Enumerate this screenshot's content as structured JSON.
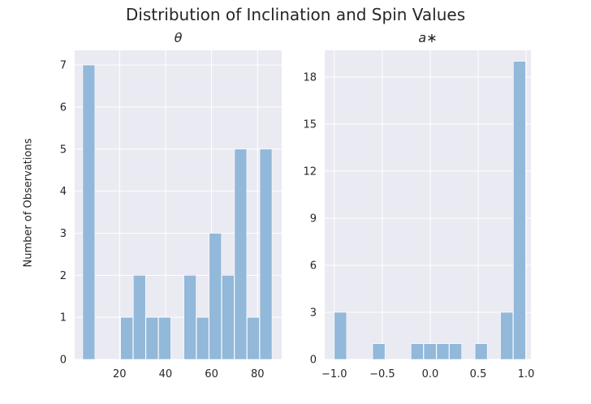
{
  "figure": {
    "title": "Distribution of Inclination and Spin Values",
    "ylabel": "Number of Observations"
  },
  "colors": {
    "background": "#eaeaf2",
    "grid": "#ffffff",
    "bar": "#92b8da"
  },
  "chart_data": [
    {
      "type": "bar",
      "title": "θ",
      "xlabel": "",
      "ylabel": "Number of Observations",
      "grid": true,
      "xlim": [
        0.5,
        90.5
      ],
      "ylim": [
        0,
        7.35
      ],
      "xticks": [
        20,
        40,
        60,
        80
      ],
      "yticks": [
        0,
        1,
        2,
        3,
        4,
        5,
        6,
        7
      ],
      "bins": [
        {
          "x0": 4.0,
          "x1": 9.5,
          "value": 7
        },
        {
          "x0": 9.5,
          "x1": 15.0,
          "value": 0
        },
        {
          "x0": 15.0,
          "x1": 20.5,
          "value": 0
        },
        {
          "x0": 20.5,
          "x1": 26.0,
          "value": 1
        },
        {
          "x0": 26.0,
          "x1": 31.5,
          "value": 2
        },
        {
          "x0": 31.5,
          "x1": 37.0,
          "value": 1
        },
        {
          "x0": 37.0,
          "x1": 42.5,
          "value": 1
        },
        {
          "x0": 42.5,
          "x1": 48.0,
          "value": 0
        },
        {
          "x0": 48.0,
          "x1": 53.5,
          "value": 2
        },
        {
          "x0": 53.5,
          "x1": 59.0,
          "value": 1
        },
        {
          "x0": 59.0,
          "x1": 64.5,
          "value": 3
        },
        {
          "x0": 64.5,
          "x1": 70.0,
          "value": 2
        },
        {
          "x0": 70.0,
          "x1": 75.5,
          "value": 5
        },
        {
          "x0": 75.5,
          "x1": 81.0,
          "value": 1
        },
        {
          "x0": 81.0,
          "x1": 86.5,
          "value": 5
        }
      ]
    },
    {
      "type": "bar",
      "title": "a∗",
      "xlabel": "",
      "ylabel": "",
      "grid": true,
      "xlim": [
        -1.1,
        1.05
      ],
      "ylim": [
        0,
        19.7
      ],
      "xticks": [
        -1.0,
        -0.5,
        0.0,
        0.5,
        1.0
      ],
      "xticklabels": [
        "−1.0",
        "−0.5",
        "0.0",
        "0.5",
        "1.0"
      ],
      "yticks": [
        0,
        3,
        6,
        9,
        12,
        15,
        18
      ],
      "bins": [
        {
          "x0": -1.0,
          "x1": -0.867,
          "value": 3
        },
        {
          "x0": -0.867,
          "x1": -0.733,
          "value": 0
        },
        {
          "x0": -0.733,
          "x1": -0.6,
          "value": 0
        },
        {
          "x0": -0.6,
          "x1": -0.467,
          "value": 1
        },
        {
          "x0": -0.467,
          "x1": -0.333,
          "value": 0
        },
        {
          "x0": -0.333,
          "x1": -0.2,
          "value": 0
        },
        {
          "x0": -0.2,
          "x1": -0.067,
          "value": 1
        },
        {
          "x0": -0.067,
          "x1": 0.067,
          "value": 1
        },
        {
          "x0": 0.067,
          "x1": 0.2,
          "value": 1
        },
        {
          "x0": 0.2,
          "x1": 0.333,
          "value": 1
        },
        {
          "x0": 0.333,
          "x1": 0.467,
          "value": 0
        },
        {
          "x0": 0.467,
          "x1": 0.6,
          "value": 1
        },
        {
          "x0": 0.6,
          "x1": 0.733,
          "value": 0
        },
        {
          "x0": 0.733,
          "x1": 0.867,
          "value": 3
        },
        {
          "x0": 0.867,
          "x1": 1.0,
          "value": 19
        }
      ]
    }
  ]
}
